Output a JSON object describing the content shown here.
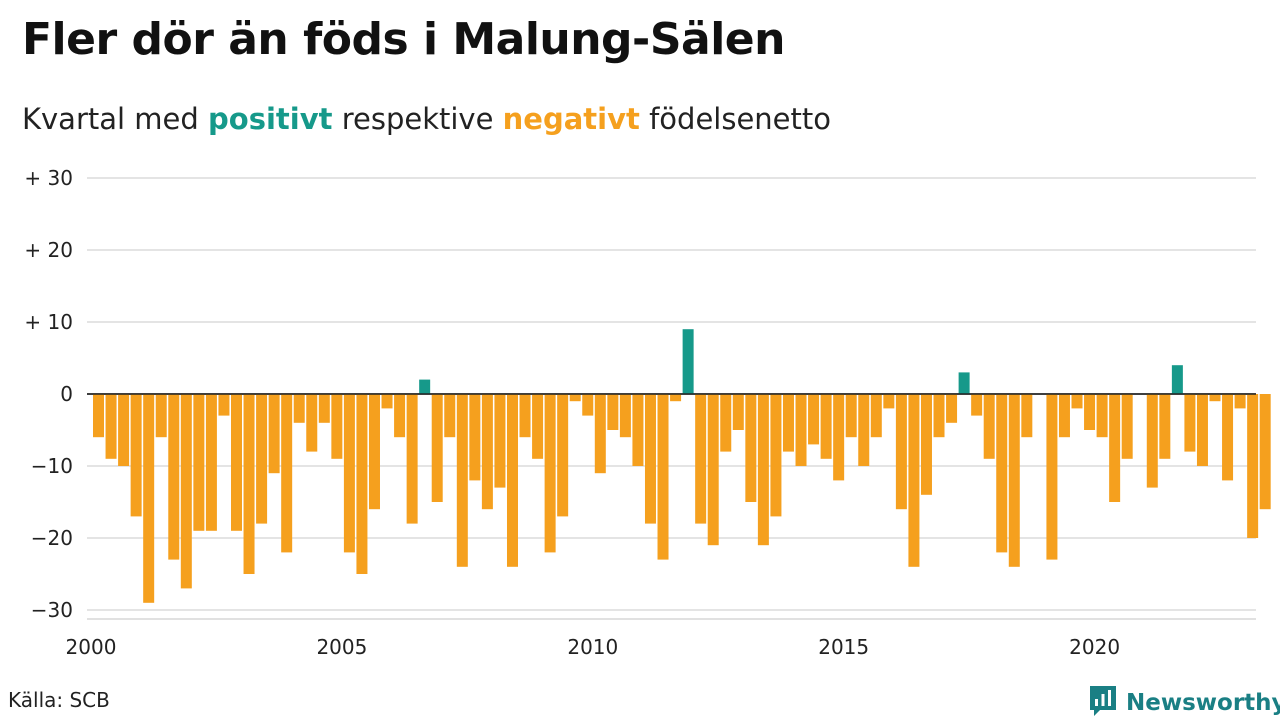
{
  "title": "Fler dör än föds i Malung-Sälen",
  "subtitle": {
    "part1": "Kvartal med ",
    "positive_word": "positivt",
    "part2": " respektive ",
    "negative_word": "negativt",
    "part3": " födelsenetto"
  },
  "colors": {
    "positive": "#16998a",
    "negative": "#f5a01e",
    "brand": "#1a7f84"
  },
  "chart_data": {
    "type": "bar",
    "x_start": "2000-Q1",
    "ylim": [
      -32,
      30
    ],
    "y_ticks": [
      30,
      20,
      10,
      0,
      -10,
      -20,
      -30
    ],
    "y_tick_labels": [
      "+ 30",
      "+ 20",
      "+ 10",
      "0",
      "−10",
      "−20",
      "−30"
    ],
    "x_ticks": [
      2000,
      2005,
      2010,
      2015,
      2020
    ],
    "x_tick_labels": [
      "2000",
      "2005",
      "2010",
      "2015",
      "2020"
    ],
    "grid": true,
    "values": [
      -6,
      -9,
      -10,
      -17,
      -29,
      -6,
      -23,
      -27,
      -19,
      -19,
      -3,
      -19,
      -25,
      -18,
      -11,
      -22,
      -4,
      -8,
      -4,
      -9,
      -22,
      -25,
      -16,
      -2,
      -6,
      -18,
      2,
      -15,
      -6,
      -24,
      -12,
      -16,
      -13,
      -24,
      -6,
      -9,
      -22,
      -17,
      -1,
      -3,
      -11,
      -5,
      -6,
      -10,
      -18,
      -23,
      -1,
      9,
      -18,
      -21,
      -8,
      -5,
      -15,
      -21,
      -17,
      -8,
      -10,
      -7,
      -9,
      -12,
      -6,
      -10,
      -6,
      -2,
      -16,
      -24,
      -14,
      -6,
      -4,
      3,
      -3,
      -9,
      -22,
      -24,
      -6,
      0,
      -23,
      -6,
      -2,
      -5,
      -6,
      -15,
      -9,
      0,
      -13,
      -9,
      4,
      -8,
      -10,
      -1,
      -12,
      -2,
      -20,
      -16
    ]
  },
  "source": "Källa: SCB",
  "brand": {
    "name": "Newsworthy",
    "icon": "newsworthy-logo-icon"
  }
}
